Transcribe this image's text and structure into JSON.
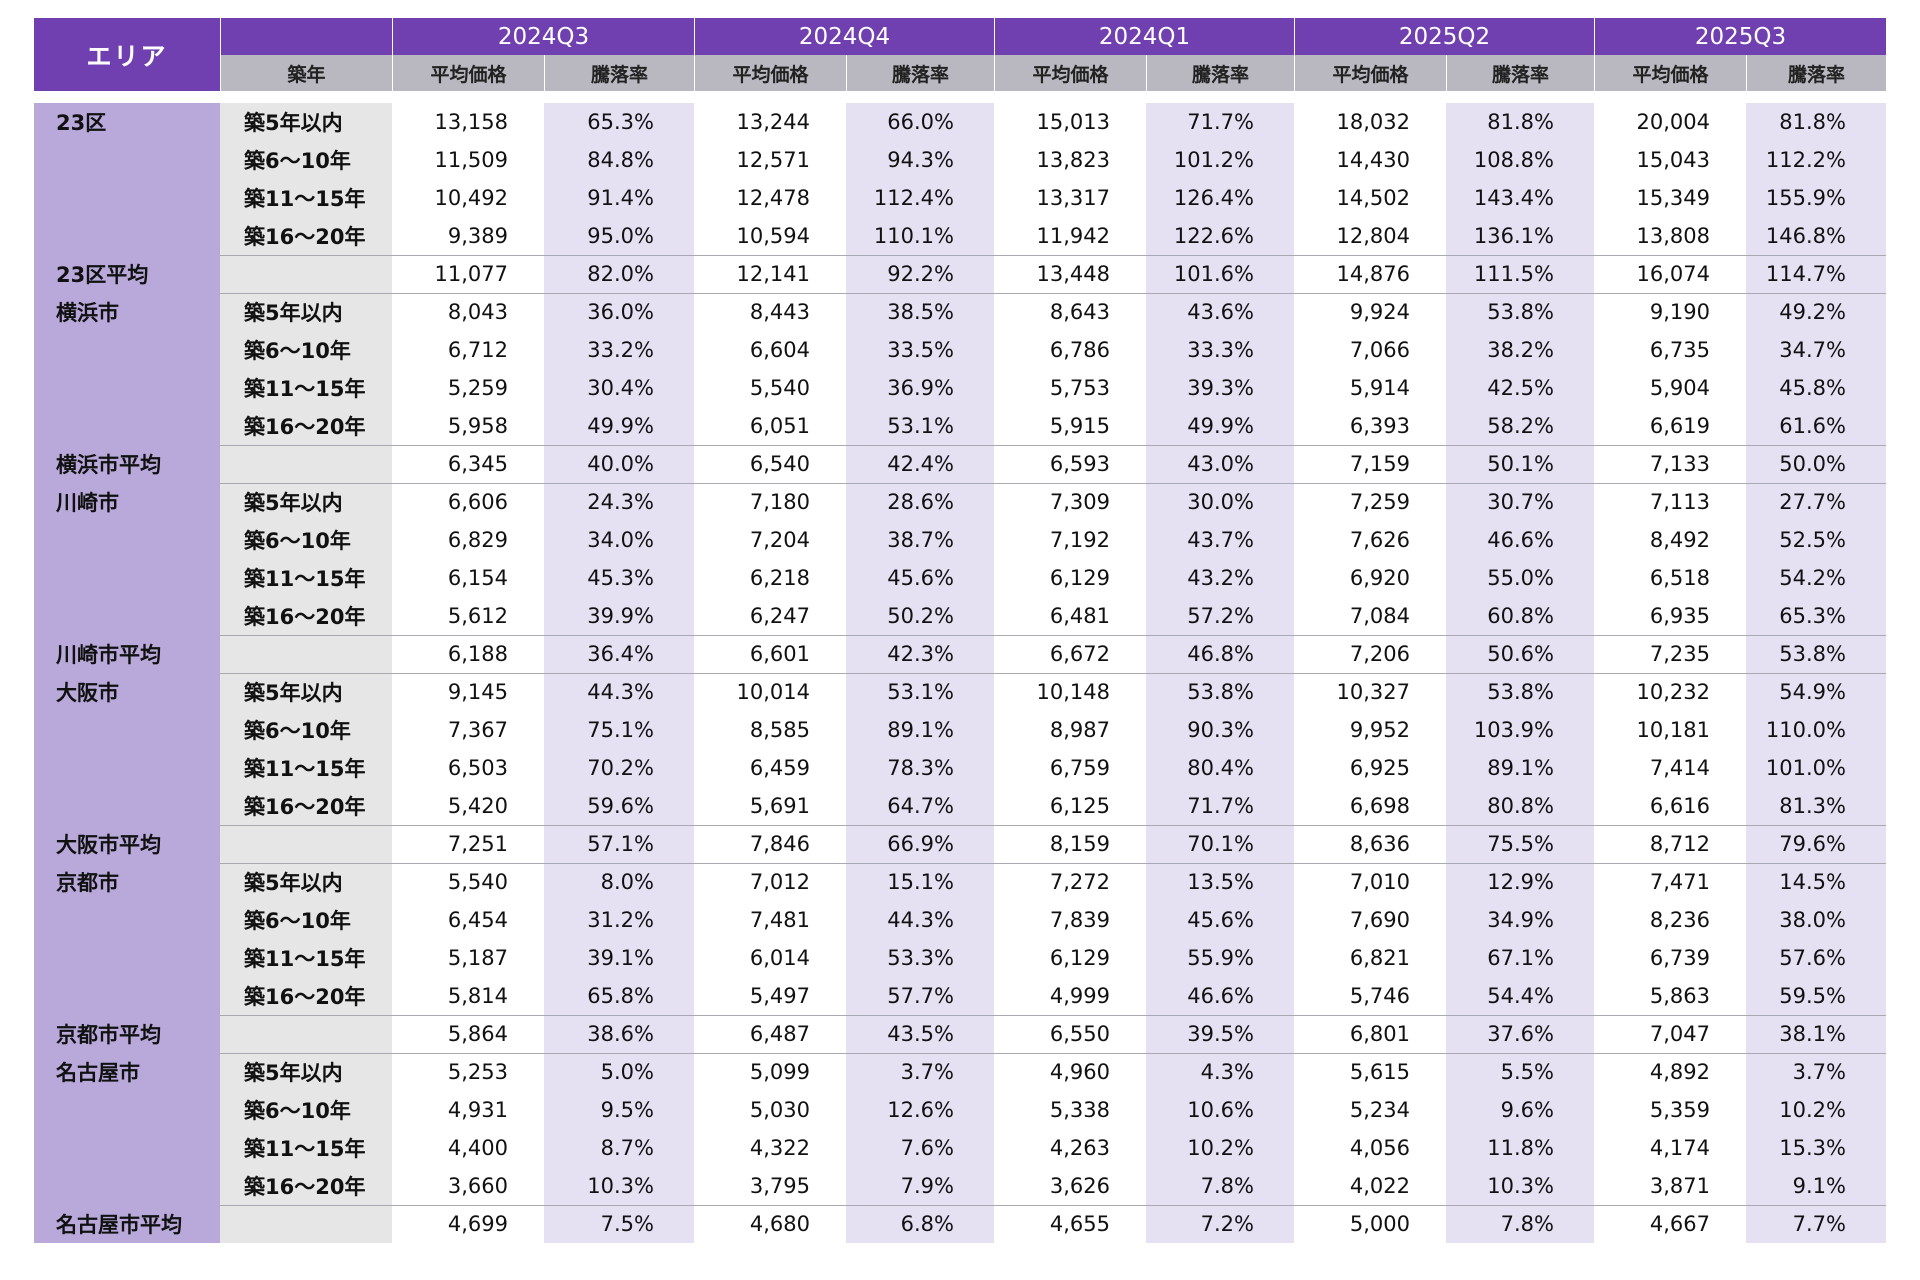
{
  "table": {
    "corner": "エリア",
    "age_header": "築年",
    "periods": [
      "2024Q3",
      "2024Q4",
      "2024Q1",
      "2025Q2",
      "2025Q3"
    ],
    "subheaders": [
      "平均価格",
      "騰落率"
    ],
    "ages": [
      "築5年以内",
      "築6～10年",
      "築11～15年",
      "築16～20年"
    ],
    "groups": [
      {
        "area": "23区",
        "rows": [
          [
            "13,158",
            "65.3%",
            "13,244",
            "66.0%",
            "15,013",
            "71.7%",
            "18,032",
            "81.8%",
            "20,004",
            "81.8%"
          ],
          [
            "11,509",
            "84.8%",
            "12,571",
            "94.3%",
            "13,823",
            "101.2%",
            "14,430",
            "108.8%",
            "15,043",
            "112.2%"
          ],
          [
            "10,492",
            "91.4%",
            "12,478",
            "112.4%",
            "13,317",
            "126.4%",
            "14,502",
            "143.4%",
            "15,349",
            "155.9%"
          ],
          [
            "9,389",
            "95.0%",
            "10,594",
            "110.1%",
            "11,942",
            "122.6%",
            "12,804",
            "136.1%",
            "13,808",
            "146.8%"
          ]
        ],
        "average_label": "23区平均",
        "average": [
          "11,077",
          "82.0%",
          "12,141",
          "92.2%",
          "13,448",
          "101.6%",
          "14,876",
          "111.5%",
          "16,074",
          "114.7%"
        ]
      },
      {
        "area": "横浜市",
        "rows": [
          [
            "8,043",
            "36.0%",
            "8,443",
            "38.5%",
            "8,643",
            "43.6%",
            "9,924",
            "53.8%",
            "9,190",
            "49.2%"
          ],
          [
            "6,712",
            "33.2%",
            "6,604",
            "33.5%",
            "6,786",
            "33.3%",
            "7,066",
            "38.2%",
            "6,735",
            "34.7%"
          ],
          [
            "5,259",
            "30.4%",
            "5,540",
            "36.9%",
            "5,753",
            "39.3%",
            "5,914",
            "42.5%",
            "5,904",
            "45.8%"
          ],
          [
            "5,958",
            "49.9%",
            "6,051",
            "53.1%",
            "5,915",
            "49.9%",
            "6,393",
            "58.2%",
            "6,619",
            "61.6%"
          ]
        ],
        "average_label": "横浜市平均",
        "average": [
          "6,345",
          "40.0%",
          "6,540",
          "42.4%",
          "6,593",
          "43.0%",
          "7,159",
          "50.1%",
          "7,133",
          "50.0%"
        ]
      },
      {
        "area": "川崎市",
        "rows": [
          [
            "6,606",
            "24.3%",
            "7,180",
            "28.6%",
            "7,309",
            "30.0%",
            "7,259",
            "30.7%",
            "7,113",
            "27.7%"
          ],
          [
            "6,829",
            "34.0%",
            "7,204",
            "38.7%",
            "7,192",
            "43.7%",
            "7,626",
            "46.6%",
            "8,492",
            "52.5%"
          ],
          [
            "6,154",
            "45.3%",
            "6,218",
            "45.6%",
            "6,129",
            "43.2%",
            "6,920",
            "55.0%",
            "6,518",
            "54.2%"
          ],
          [
            "5,612",
            "39.9%",
            "6,247",
            "50.2%",
            "6,481",
            "57.2%",
            "7,084",
            "60.8%",
            "6,935",
            "65.3%"
          ]
        ],
        "average_label": "川崎市平均",
        "average": [
          "6,188",
          "36.4%",
          "6,601",
          "42.3%",
          "6,672",
          "46.8%",
          "7,206",
          "50.6%",
          "7,235",
          "53.8%"
        ]
      },
      {
        "area": "大阪市",
        "rows": [
          [
            "9,145",
            "44.3%",
            "10,014",
            "53.1%",
            "10,148",
            "53.8%",
            "10,327",
            "53.8%",
            "10,232",
            "54.9%"
          ],
          [
            "7,367",
            "75.1%",
            "8,585",
            "89.1%",
            "8,987",
            "90.3%",
            "9,952",
            "103.9%",
            "10,181",
            "110.0%"
          ],
          [
            "6,503",
            "70.2%",
            "6,459",
            "78.3%",
            "6,759",
            "80.4%",
            "6,925",
            "89.1%",
            "7,414",
            "101.0%"
          ],
          [
            "5,420",
            "59.6%",
            "5,691",
            "64.7%",
            "6,125",
            "71.7%",
            "6,698",
            "80.8%",
            "6,616",
            "81.3%"
          ]
        ],
        "average_label": "大阪市平均",
        "average": [
          "7,251",
          "57.1%",
          "7,846",
          "66.9%",
          "8,159",
          "70.1%",
          "8,636",
          "75.5%",
          "8,712",
          "79.6%"
        ]
      },
      {
        "area": "京都市",
        "rows": [
          [
            "5,540",
            "8.0%",
            "7,012",
            "15.1%",
            "7,272",
            "13.5%",
            "7,010",
            "12.9%",
            "7,471",
            "14.5%"
          ],
          [
            "6,454",
            "31.2%",
            "7,481",
            "44.3%",
            "7,839",
            "45.6%",
            "7,690",
            "34.9%",
            "8,236",
            "38.0%"
          ],
          [
            "5,187",
            "39.1%",
            "6,014",
            "53.3%",
            "6,129",
            "55.9%",
            "6,821",
            "67.1%",
            "6,739",
            "57.6%"
          ],
          [
            "5,814",
            "65.8%",
            "5,497",
            "57.7%",
            "4,999",
            "46.6%",
            "5,746",
            "54.4%",
            "5,863",
            "59.5%"
          ]
        ],
        "average_label": "京都市平均",
        "average": [
          "5,864",
          "38.6%",
          "6,487",
          "43.5%",
          "6,550",
          "39.5%",
          "6,801",
          "37.6%",
          "7,047",
          "38.1%"
        ]
      },
      {
        "area": "名古屋市",
        "rows": [
          [
            "5,253",
            "5.0%",
            "5,099",
            "3.7%",
            "4,960",
            "4.3%",
            "5,615",
            "5.5%",
            "4,892",
            "3.7%"
          ],
          [
            "4,931",
            "9.5%",
            "5,030",
            "12.6%",
            "5,338",
            "10.6%",
            "5,234",
            "9.6%",
            "5,359",
            "10.2%"
          ],
          [
            "4,400",
            "8.7%",
            "4,322",
            "7.6%",
            "4,263",
            "10.2%",
            "4,056",
            "11.8%",
            "4,174",
            "15.3%"
          ],
          [
            "3,660",
            "10.3%",
            "3,795",
            "7.9%",
            "3,626",
            "7.8%",
            "4,022",
            "10.3%",
            "3,871",
            "9.1%"
          ]
        ],
        "average_label": "名古屋市平均",
        "average": [
          "4,699",
          "7.5%",
          "4,680",
          "6.8%",
          "4,655",
          "7.2%",
          "5,000",
          "7.8%",
          "4,667",
          "7.7%"
        ]
      }
    ]
  }
}
